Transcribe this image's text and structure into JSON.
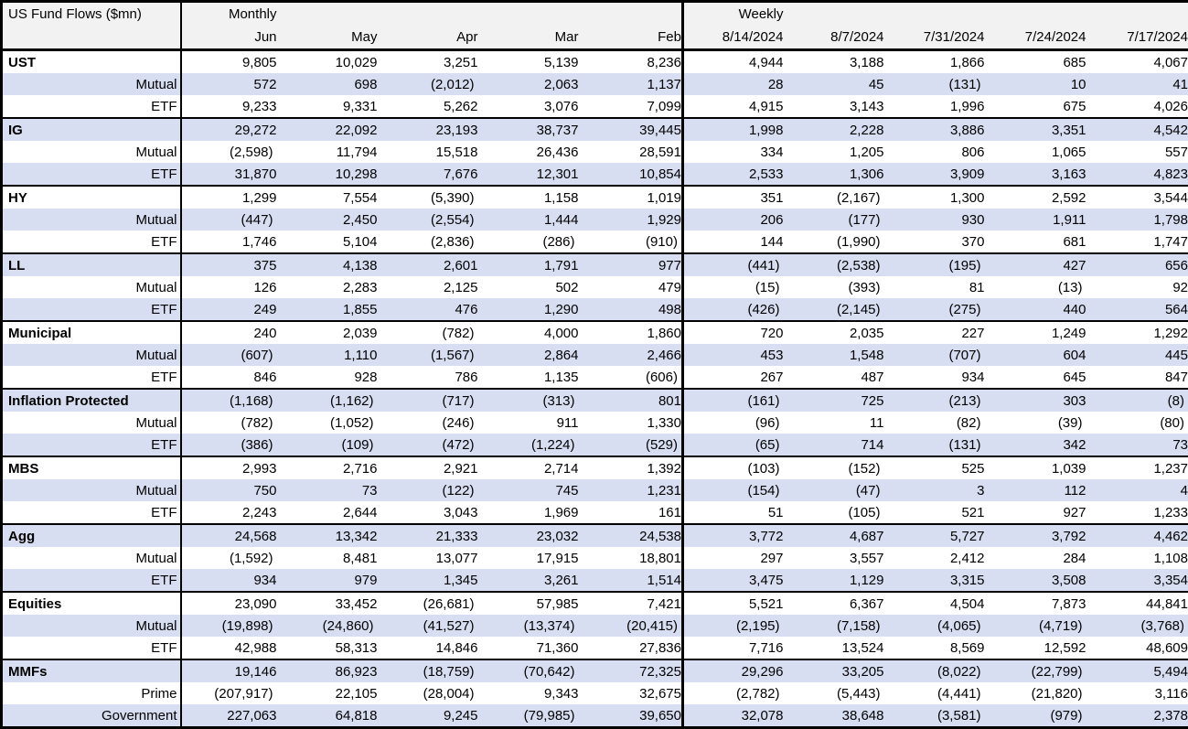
{
  "chart_data": {
    "type": "table",
    "title": "US Fund Flows ($mn)",
    "column_groups": [
      {
        "label": "Monthly",
        "columns": [
          "Jun",
          "May",
          "Apr",
          "Mar",
          "Feb"
        ]
      },
      {
        "label": "Weekly",
        "columns": [
          "8/14/2024",
          "8/7/2024",
          "7/31/2024",
          "7/24/2024",
          "7/17/2024"
        ]
      }
    ],
    "groups": [
      {
        "category": "UST",
        "rows": [
          {
            "label": "UST",
            "values": [
              "9,805",
              "10,029",
              "3,251",
              "5,139",
              "8,236",
              "4,944",
              "3,188",
              "1,866",
              "685",
              "4,067"
            ]
          },
          {
            "label": "Mutual",
            "values": [
              "572",
              "698",
              "(2,012)",
              "2,063",
              "1,137",
              "28",
              "45",
              "(131)",
              "10",
              "41"
            ]
          },
          {
            "label": "ETF",
            "values": [
              "9,233",
              "9,331",
              "5,262",
              "3,076",
              "7,099",
              "4,915",
              "3,143",
              "1,996",
              "675",
              "4,026"
            ]
          }
        ]
      },
      {
        "category": "IG",
        "rows": [
          {
            "label": "IG",
            "values": [
              "29,272",
              "22,092",
              "23,193",
              "38,737",
              "39,445",
              "1,998",
              "2,228",
              "3,886",
              "3,351",
              "4,542"
            ]
          },
          {
            "label": "Mutual",
            "values": [
              "(2,598)",
              "11,794",
              "15,518",
              "26,436",
              "28,591",
              "334",
              "1,205",
              "806",
              "1,065",
              "557"
            ]
          },
          {
            "label": "ETF",
            "values": [
              "31,870",
              "10,298",
              "7,676",
              "12,301",
              "10,854",
              "2,533",
              "1,306",
              "3,909",
              "3,163",
              "4,823"
            ]
          }
        ]
      },
      {
        "category": "HY",
        "rows": [
          {
            "label": "HY",
            "values": [
              "1,299",
              "7,554",
              "(5,390)",
              "1,158",
              "1,019",
              "351",
              "(2,167)",
              "1,300",
              "2,592",
              "3,544"
            ]
          },
          {
            "label": "Mutual",
            "values": [
              "(447)",
              "2,450",
              "(2,554)",
              "1,444",
              "1,929",
              "206",
              "(177)",
              "930",
              "1,911",
              "1,798"
            ]
          },
          {
            "label": "ETF",
            "values": [
              "1,746",
              "5,104",
              "(2,836)",
              "(286)",
              "(910)",
              "144",
              "(1,990)",
              "370",
              "681",
              "1,747"
            ]
          }
        ]
      },
      {
        "category": "LL",
        "rows": [
          {
            "label": "LL",
            "values": [
              "375",
              "4,138",
              "2,601",
              "1,791",
              "977",
              "(441)",
              "(2,538)",
              "(195)",
              "427",
              "656"
            ]
          },
          {
            "label": "Mutual",
            "values": [
              "126",
              "2,283",
              "2,125",
              "502",
              "479",
              "(15)",
              "(393)",
              "81",
              "(13)",
              "92"
            ]
          },
          {
            "label": "ETF",
            "values": [
              "249",
              "1,855",
              "476",
              "1,290",
              "498",
              "(426)",
              "(2,145)",
              "(275)",
              "440",
              "564"
            ]
          }
        ]
      },
      {
        "category": "Municipal",
        "rows": [
          {
            "label": "Municipal",
            "values": [
              "240",
              "2,039",
              "(782)",
              "4,000",
              "1,860",
              "720",
              "2,035",
              "227",
              "1,249",
              "1,292"
            ]
          },
          {
            "label": "Mutual",
            "values": [
              "(607)",
              "1,110",
              "(1,567)",
              "2,864",
              "2,466",
              "453",
              "1,548",
              "(707)",
              "604",
              "445"
            ]
          },
          {
            "label": "ETF",
            "values": [
              "846",
              "928",
              "786",
              "1,135",
              "(606)",
              "267",
              "487",
              "934",
              "645",
              "847"
            ]
          }
        ]
      },
      {
        "category": "Inflation Protected",
        "rows": [
          {
            "label": "Inflation Protected",
            "values": [
              "(1,168)",
              "(1,162)",
              "(717)",
              "(313)",
              "801",
              "(161)",
              "725",
              "(213)",
              "303",
              "(8)"
            ]
          },
          {
            "label": "Mutual",
            "values": [
              "(782)",
              "(1,052)",
              "(246)",
              "911",
              "1,330",
              "(96)",
              "11",
              "(82)",
              "(39)",
              "(80)"
            ]
          },
          {
            "label": "ETF",
            "values": [
              "(386)",
              "(109)",
              "(472)",
              "(1,224)",
              "(529)",
              "(65)",
              "714",
              "(131)",
              "342",
              "73"
            ]
          }
        ]
      },
      {
        "category": "MBS",
        "rows": [
          {
            "label": "MBS",
            "values": [
              "2,993",
              "2,716",
              "2,921",
              "2,714",
              "1,392",
              "(103)",
              "(152)",
              "525",
              "1,039",
              "1,237"
            ]
          },
          {
            "label": "Mutual",
            "values": [
              "750",
              "73",
              "(122)",
              "745",
              "1,231",
              "(154)",
              "(47)",
              "3",
              "112",
              "4"
            ]
          },
          {
            "label": "ETF",
            "values": [
              "2,243",
              "2,644",
              "3,043",
              "1,969",
              "161",
              "51",
              "(105)",
              "521",
              "927",
              "1,233"
            ]
          }
        ]
      },
      {
        "category": "Agg",
        "rows": [
          {
            "label": "Agg",
            "values": [
              "24,568",
              "13,342",
              "21,333",
              "23,032",
              "24,538",
              "3,772",
              "4,687",
              "5,727",
              "3,792",
              "4,462"
            ]
          },
          {
            "label": "Mutual",
            "values": [
              "(1,592)",
              "8,481",
              "13,077",
              "17,915",
              "18,801",
              "297",
              "3,557",
              "2,412",
              "284",
              "1,108"
            ]
          },
          {
            "label": "ETF",
            "values": [
              "934",
              "979",
              "1,345",
              "3,261",
              "1,514",
              "3,475",
              "1,129",
              "3,315",
              "3,508",
              "3,354"
            ]
          }
        ]
      },
      {
        "category": "Equities",
        "rows": [
          {
            "label": "Equities",
            "values": [
              "23,090",
              "33,452",
              "(26,681)",
              "57,985",
              "7,421",
              "5,521",
              "6,367",
              "4,504",
              "7,873",
              "44,841"
            ]
          },
          {
            "label": "Mutual",
            "values": [
              "(19,898)",
              "(24,860)",
              "(41,527)",
              "(13,374)",
              "(20,415)",
              "(2,195)",
              "(7,158)",
              "(4,065)",
              "(4,719)",
              "(3,768)"
            ]
          },
          {
            "label": "ETF",
            "values": [
              "42,988",
              "58,313",
              "14,846",
              "71,360",
              "27,836",
              "7,716",
              "13,524",
              "8,569",
              "12,592",
              "48,609"
            ]
          }
        ]
      },
      {
        "category": "MMFs",
        "rows": [
          {
            "label": "MMFs",
            "values": [
              "19,146",
              "86,923",
              "(18,759)",
              "(70,642)",
              "72,325",
              "29,296",
              "33,205",
              "(8,022)",
              "(22,799)",
              "5,494"
            ]
          },
          {
            "label": "Prime",
            "values": [
              "(207,917)",
              "22,105",
              "(28,004)",
              "9,343",
              "32,675",
              "(2,782)",
              "(5,443)",
              "(4,441)",
              "(21,820)",
              "3,116"
            ]
          },
          {
            "label": "Government",
            "values": [
              "227,063",
              "64,818",
              "9,245",
              "(79,985)",
              "39,650",
              "32,078",
              "38,648",
              "(3,581)",
              "(979)",
              "2,378"
            ]
          }
        ]
      }
    ]
  },
  "colors": {
    "row_shade": "#D8DEF1",
    "header_bg": "#F2F2F2",
    "border": "#000000",
    "text": "#000000"
  }
}
